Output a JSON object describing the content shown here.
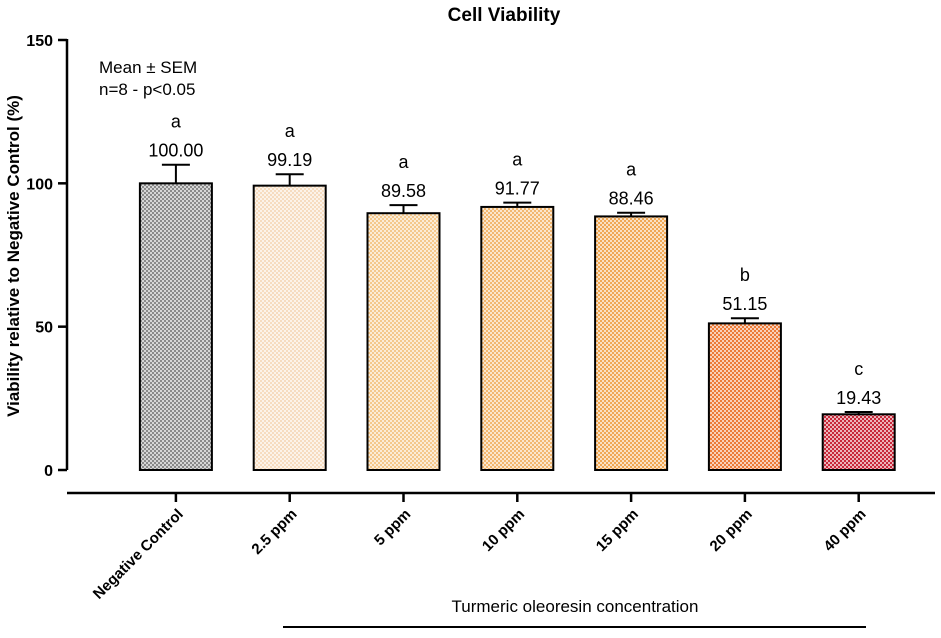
{
  "chart_data": {
    "type": "bar",
    "title": "Cell Viability",
    "ylabel": "Viability relative to Negative Control (%)",
    "xlabel": "Turmeric oleoresin concentration",
    "ylim": [
      0,
      150
    ],
    "yticks": [
      0,
      50,
      100,
      150
    ],
    "legend_text": [
      "Mean ± SEM",
      "n=8 - p<0.05"
    ],
    "categories": [
      "Negative Control",
      "2.5 ppm",
      "5 ppm",
      "10 ppm",
      "15 ppm",
      "20 ppm",
      "40 ppm"
    ],
    "values": [
      100.0,
      99.19,
      89.58,
      91.77,
      88.46,
      51.15,
      19.43
    ],
    "value_labels": [
      "100.00",
      "99.19",
      "89.58",
      "91.77",
      "88.46",
      "51.15",
      "19.43"
    ],
    "errors": [
      6.5,
      4.0,
      2.8,
      1.5,
      1.3,
      1.8,
      0.8
    ],
    "significance": [
      "a",
      "a",
      "a",
      "a",
      "a",
      "b",
      "c"
    ],
    "colors": [
      "#8a8a8a",
      "#f6dcc0",
      "#f4c88c",
      "#f2b770",
      "#f0a855",
      "#ec7b38",
      "#c8283a"
    ]
  }
}
